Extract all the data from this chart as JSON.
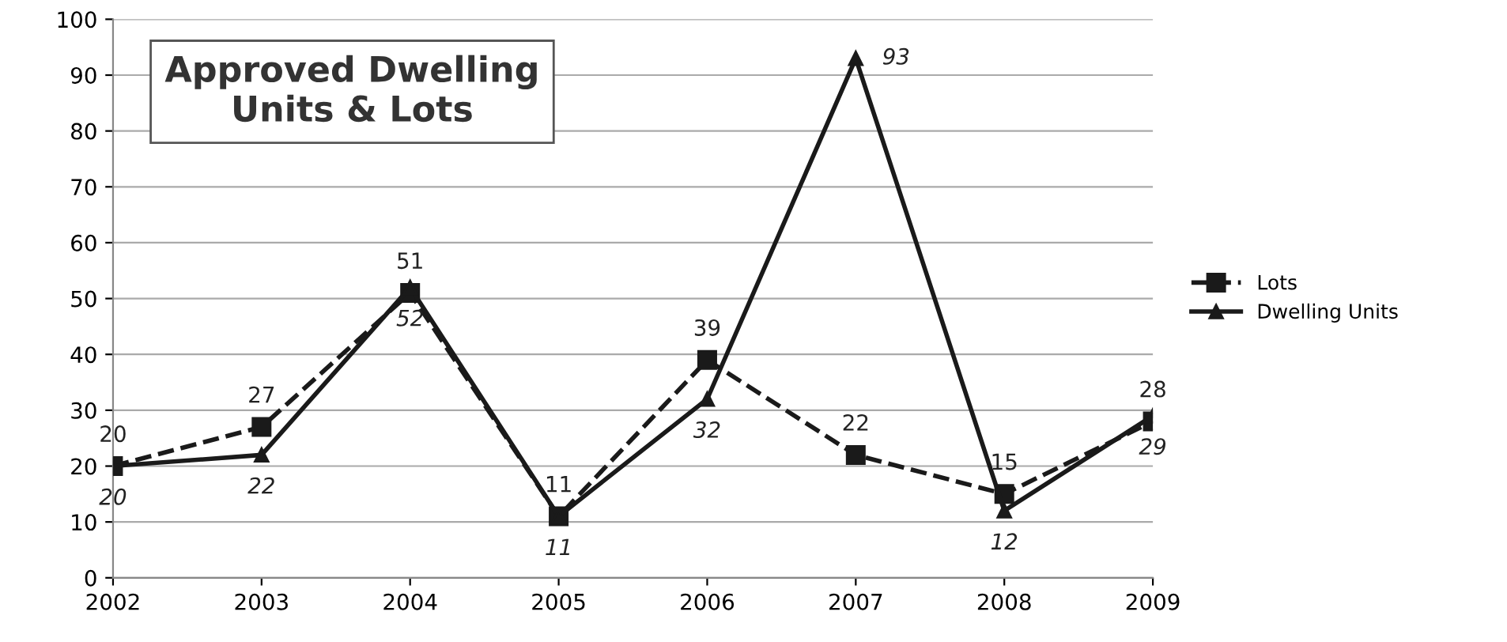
{
  "chart_data": {
    "type": "line",
    "title": "Approved Dwelling\nUnits & Lots",
    "categories": [
      "2002",
      "2003",
      "2004",
      "2005",
      "2006",
      "2007",
      "2008",
      "2009"
    ],
    "series": [
      {
        "name": "Lots",
        "color": "#1a1a1a",
        "marker": "square",
        "line_style": "dashed",
        "values": [
          20,
          27,
          51,
          11,
          39,
          22,
          15,
          28
        ]
      },
      {
        "name": "Dwelling Units",
        "color": "#1a1a1a",
        "marker": "triangle",
        "line_style": "solid",
        "values": [
          20,
          22,
          52,
          11,
          32,
          93,
          12,
          29
        ]
      }
    ],
    "ylim": [
      0,
      100
    ],
    "yticks": [
      0,
      10,
      20,
      30,
      40,
      50,
      60,
      70,
      80,
      90,
      100
    ],
    "grid": "y",
    "legend": "right",
    "data_labels": true
  }
}
